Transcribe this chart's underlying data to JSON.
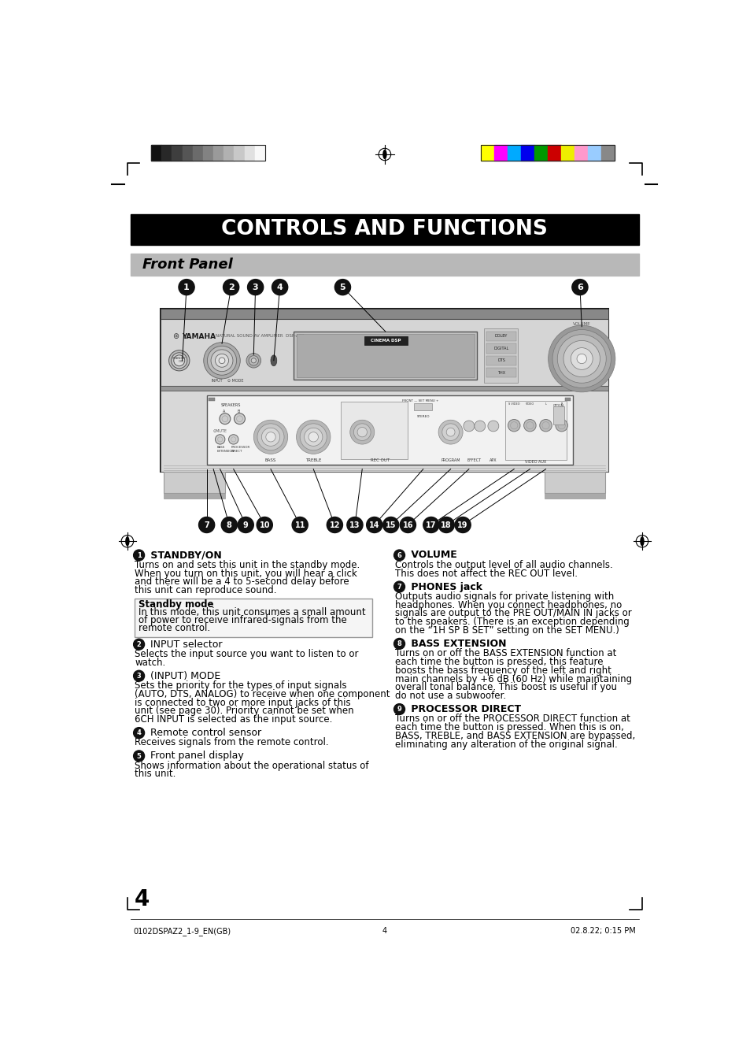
{
  "title": "CONTROLS AND FUNCTIONS",
  "subtitle": "Front Panel",
  "bg_color": "#ffffff",
  "title_bg": "#000000",
  "title_fg": "#ffffff",
  "subtitle_bg": "#b8b8b8",
  "subtitle_fg": "#000000",
  "page_number": "4",
  "footer_left": "0102DSPAZ2_1-9_EN(GB)",
  "footer_center": "4",
  "footer_right": "02.8.22; 0:15 PM",
  "color_bars_left": [
    "#111111",
    "#282828",
    "#3e3e3e",
    "#555555",
    "#6b6b6b",
    "#828282",
    "#9a9a9a",
    "#b1b1b1",
    "#c8c8c8",
    "#e0e0e0",
    "#f8f8f8"
  ],
  "color_bars_right": [
    "#ffff00",
    "#ff00ff",
    "#00aaff",
    "#0000ee",
    "#009900",
    "#cc0000",
    "#eeee00",
    "#ff99cc",
    "#99ccff",
    "#888888"
  ],
  "sections_left": [
    {
      "num": "1",
      "title": "STANDBY/ON",
      "bold": true,
      "text": "Turns on and sets this unit in the standby mode. When you turn on this unit, you will hear a click and there will be a 4 to 5-second delay before this unit can reproduce sound.",
      "subbox": {
        "title": "Standby mode",
        "text": "In this mode, this unit consumes a small amount of power to receive infrared-signals from the remote control."
      }
    },
    {
      "num": "2",
      "title": "INPUT selector",
      "bold": false,
      "text": "Selects the input source you want to listen to or watch."
    },
    {
      "num": "3",
      "title": "(INPUT) MODE",
      "bold": false,
      "text": "Sets the priority for the types of input signals (AUTO, DTS, ANALOG) to receive when one component is connected to two or more input jacks of this unit (see page 30). Priority cannot be set when 6CH INPUT is selected as the input source."
    },
    {
      "num": "4",
      "title": "Remote control sensor",
      "bold": false,
      "text": "Receives signals from the remote control."
    },
    {
      "num": "5",
      "title": "Front panel display",
      "bold": false,
      "text": "Shows information about the operational status of this unit."
    }
  ],
  "sections_right": [
    {
      "num": "6",
      "title": "VOLUME",
      "bold": true,
      "text": "Controls the output level of all audio channels.\nThis does not affect the REC OUT level."
    },
    {
      "num": "7",
      "title": "PHONES jack",
      "bold": true,
      "text": "Outputs audio signals for private listening with headphones. When you connect headphones, no signals are output to the PRE OUT/MAIN IN jacks or to the speakers.\n(There is an exception depending on the “1H SP B SET” setting on the SET MENU.)"
    },
    {
      "num": "8",
      "title": "BASS EXTENSION",
      "bold": true,
      "text": "Turns on or off the BASS EXTENSION function at each time the button is pressed, this feature boosts the bass frequency of the left and right main channels by +6 dB (60 Hz) while maintaining overall tonal balance. This boost is useful if you do not use a subwoofer."
    },
    {
      "num": "9",
      "title": "PROCESSOR DIRECT",
      "bold": true,
      "text": "Turns on or off the PROCESSOR DIRECT function at each time the button is pressed. When this is on, BASS, TREBLE, and BASS EXTENSION are bypassed, eliminating any alteration of the original signal."
    }
  ]
}
